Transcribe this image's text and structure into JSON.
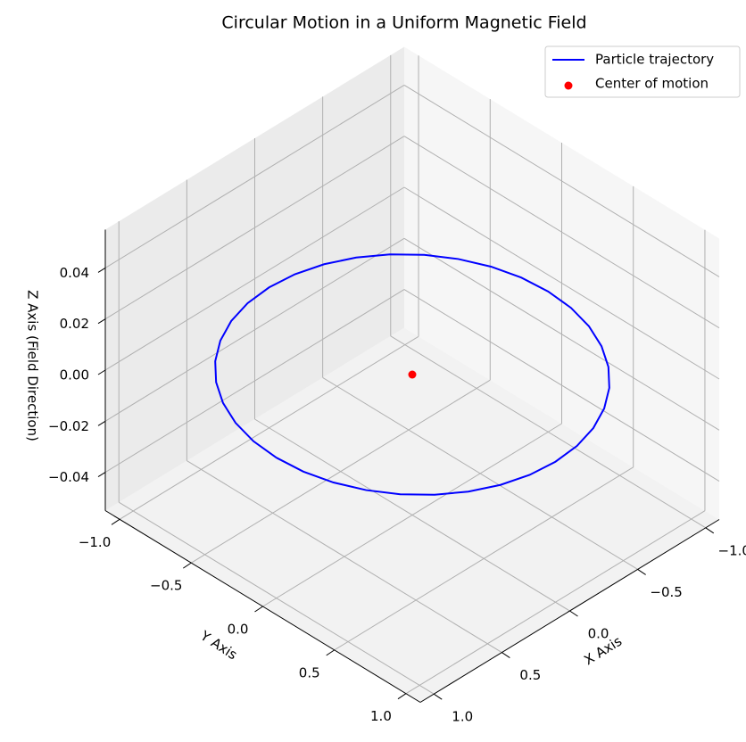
{
  "chart_data": {
    "type": "line3d",
    "title": "Circular Motion in a Uniform Magnetic Field",
    "x_label": "X Axis",
    "y_label": "Y Axis",
    "z_label": "Z Axis (Field Direction)",
    "xlim": [
      -1.1,
      1.1
    ],
    "ylim": [
      -1.1,
      1.1
    ],
    "zlim": [
      -0.055,
      0.055
    ],
    "xticks": [
      {
        "value": -1,
        "label": "−1.0"
      },
      {
        "value": -0.5,
        "label": "−0.5"
      },
      {
        "value": 0,
        "label": "0.0"
      },
      {
        "value": 0.5,
        "label": "0.5"
      },
      {
        "value": 1,
        "label": "1.0"
      }
    ],
    "yticks": [
      {
        "value": -1,
        "label": "−1.0"
      },
      {
        "value": -0.5,
        "label": "−0.5"
      },
      {
        "value": 0,
        "label": "0.0"
      },
      {
        "value": 0.5,
        "label": "0.5"
      },
      {
        "value": 1,
        "label": "1.0"
      }
    ],
    "zticks": [
      {
        "value": -0.04,
        "label": "−0.04"
      },
      {
        "value": -0.02,
        "label": "−0.02"
      },
      {
        "value": 0,
        "label": "0.00"
      },
      {
        "value": 0.02,
        "label": "0.02"
      },
      {
        "value": 0.04,
        "label": "0.04"
      }
    ],
    "grid": true,
    "legend": "upper right",
    "series": [
      {
        "name": "Particle trajectory",
        "color": "#0000ff",
        "kind": "line",
        "x": [
          1,
          0.985,
          0.94,
          0.866,
          0.766,
          0.643,
          0.5,
          0.342,
          0.174,
          0,
          -0.174,
          -0.342,
          -0.5,
          -0.643,
          -0.766,
          -0.866,
          -0.94,
          -0.985,
          -1,
          -0.985,
          -0.94,
          -0.866,
          -0.766,
          -0.643,
          -0.5,
          -0.342,
          -0.174,
          0,
          0.174,
          0.342,
          0.5,
          0.643,
          0.766,
          0.866,
          0.94,
          0.985,
          1
        ],
        "y": [
          0,
          0.174,
          0.342,
          0.5,
          0.643,
          0.766,
          0.866,
          0.94,
          0.985,
          1,
          0.985,
          0.94,
          0.866,
          0.766,
          0.643,
          0.5,
          0.342,
          0.174,
          0,
          -0.174,
          -0.342,
          -0.5,
          -0.643,
          -0.766,
          -0.866,
          -0.94,
          -0.985,
          -1,
          -0.985,
          -0.94,
          -0.866,
          -0.766,
          -0.643,
          -0.5,
          -0.342,
          -0.174,
          0
        ],
        "z": [
          0,
          0,
          0,
          0,
          0,
          0,
          0,
          0,
          0,
          0,
          0,
          0,
          0,
          0,
          0,
          0,
          0,
          0,
          0,
          0,
          0,
          0,
          0,
          0,
          0,
          0,
          0,
          0,
          0,
          0,
          0,
          0,
          0,
          0,
          0,
          0,
          0
        ]
      },
      {
        "name": "Center of motion",
        "color": "#ff0000",
        "kind": "scatter",
        "x": [
          0
        ],
        "y": [
          0
        ],
        "z": [
          0
        ]
      }
    ]
  }
}
